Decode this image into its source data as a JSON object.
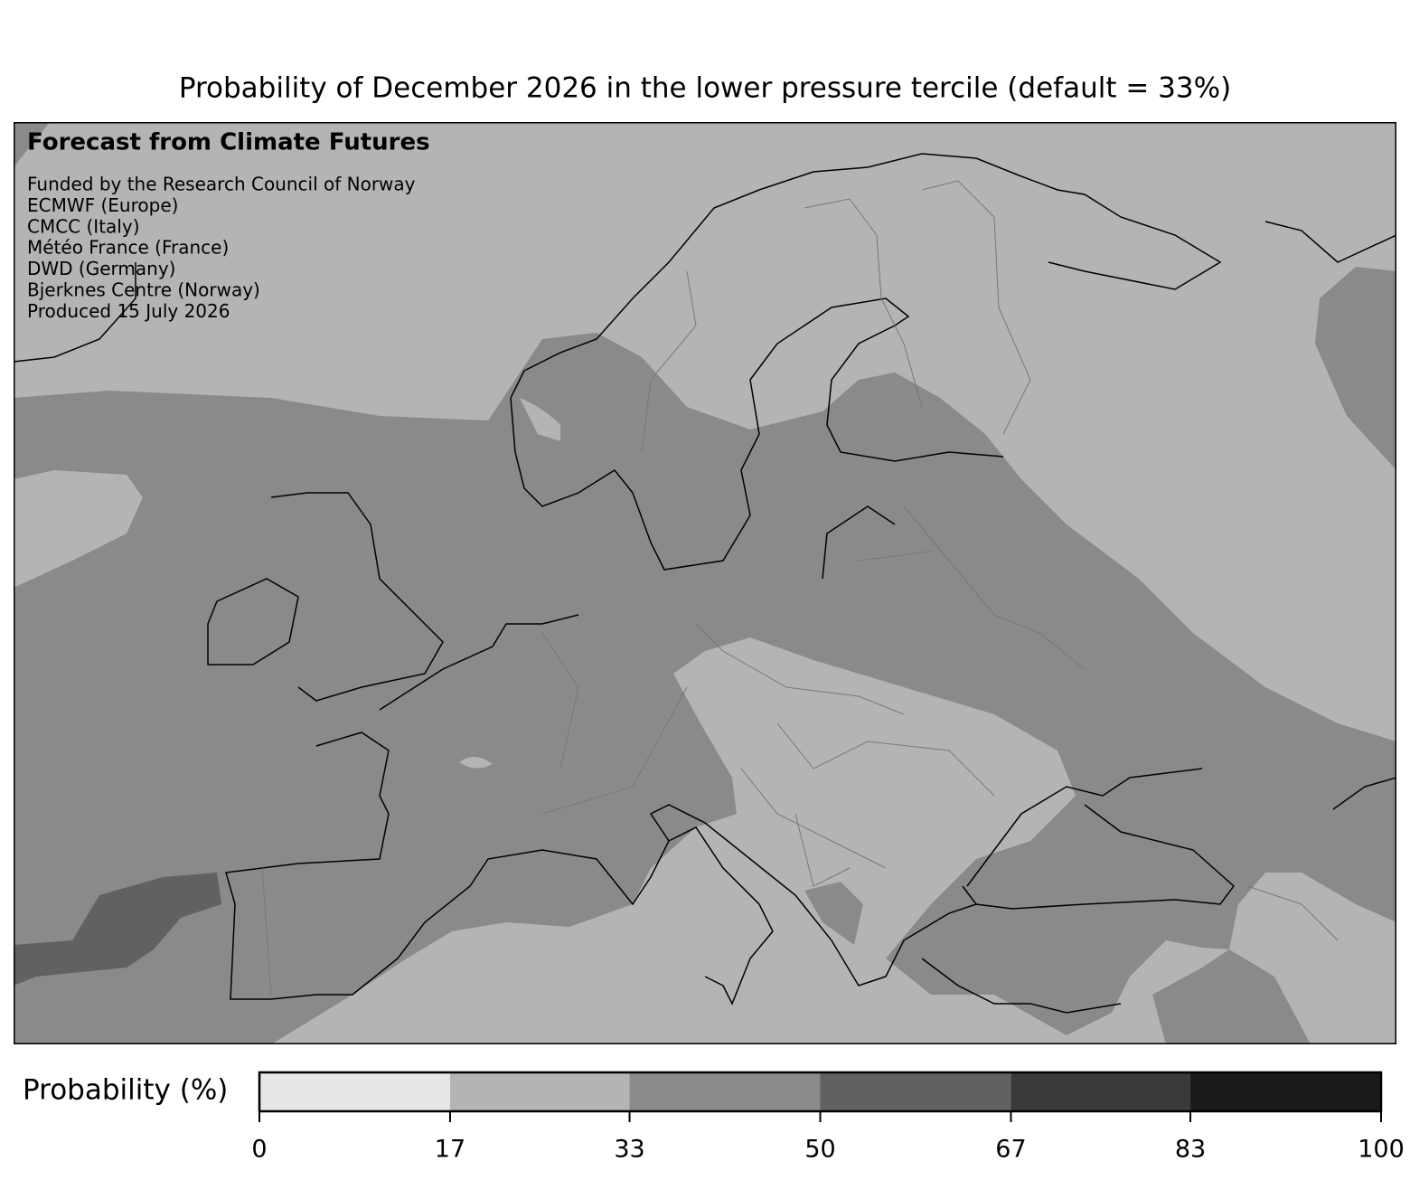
{
  "title": "Probability of December 2026 in the lower pressure tercile (default = 33%)",
  "annotation": {
    "heading": "Forecast from Climate Futures",
    "lines": [
      "Funded by the Research Council of Norway",
      "ECMWF (Europe)",
      "CMCC (Italy)",
      "Météo France (France)",
      "DWD (Germany)",
      "Bjerknes Centre (Norway)",
      "Produced 15 July 2026"
    ]
  },
  "colorbar": {
    "label": "Probability (%)",
    "lim": [
      0,
      100
    ],
    "ticks": [
      0,
      17,
      33,
      50,
      67,
      83,
      100
    ],
    "colors": [
      "#e6e6e6",
      "#b4b4b4",
      "#8a8a8a",
      "#616161",
      "#3a3a3a",
      "#1a1a1a"
    ]
  }
}
